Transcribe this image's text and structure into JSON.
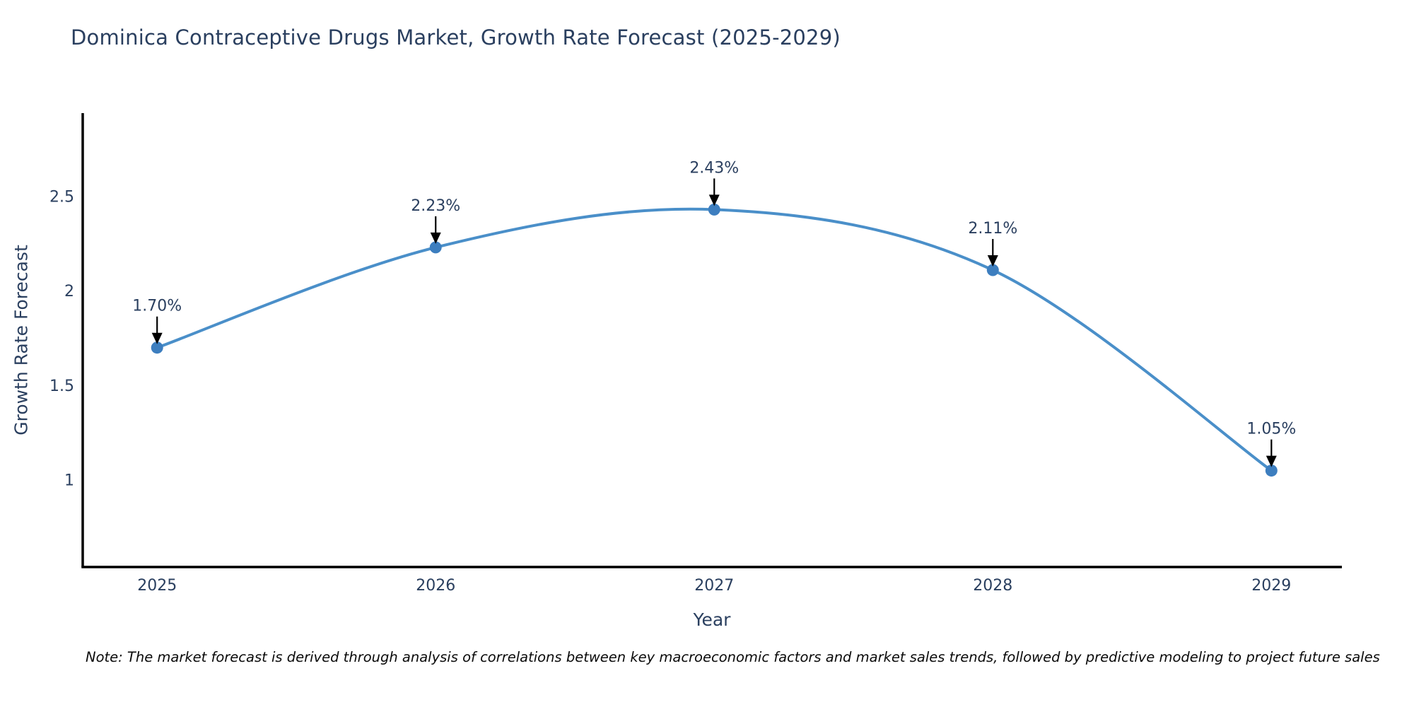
{
  "title": "Dominica Contraceptive Drugs Market, Growth Rate Forecast (2025-2029)",
  "note": "Note: The market forecast is derived through analysis of correlations between key macroeconomic factors and market sales trends, followed by predictive modeling to project future sales",
  "colors": {
    "line": "#4a8fc9",
    "marker": "#3d7ebf",
    "text": "#2a3f5f",
    "axis": "#000000",
    "arrow": "#000000",
    "background": "#ffffff"
  },
  "chart_data": {
    "type": "line",
    "x": [
      2025,
      2026,
      2027,
      2028,
      2029
    ],
    "values": [
      1.7,
      2.23,
      2.43,
      2.11,
      1.05
    ],
    "point_labels": [
      "1.70%",
      "2.23%",
      "2.43%",
      "2.11%",
      "1.05%"
    ],
    "title": "Dominica Contraceptive Drugs Market, Growth Rate Forecast (2025-2029)",
    "xlabel": "Year",
    "ylabel": "Growth Rate Forecast",
    "yticks": [
      1,
      1.5,
      2,
      2.5
    ],
    "xtick_labels": [
      "2025",
      "2026",
      "2027",
      "2028",
      "2029"
    ],
    "xlim": [
      2024.733,
      2029.253
    ],
    "ylim": [
      0.54,
      2.94
    ],
    "grid": false,
    "legend": "none",
    "line_shape": "spline",
    "annotation_style": "arrow-down"
  }
}
